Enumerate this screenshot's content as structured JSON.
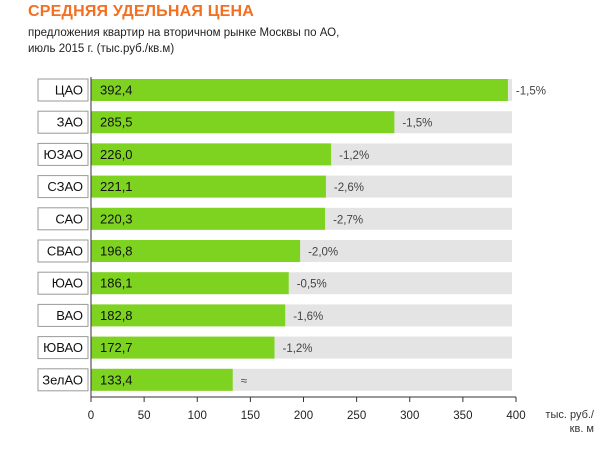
{
  "chart_data": {
    "type": "bar",
    "orientation": "horizontal",
    "title": "СРЕДНЯЯ УДЕЛЬНАЯ ЦЕНА",
    "subtitle_lines": [
      "предложения квартир на вторичном рынке Москвы по АО,",
      "июль 2015 г. (тыс.руб./кв.м)"
    ],
    "categories": [
      "ЦАО",
      "ЗАО",
      "ЮЗАО",
      "СЗАО",
      "САО",
      "СВАО",
      "ЮАО",
      "ВАО",
      "ЮВАО",
      "ЗелАО"
    ],
    "values": [
      392.4,
      285.5,
      226.0,
      221.1,
      220.3,
      196.8,
      186.1,
      182.8,
      172.7,
      133.4
    ],
    "value_labels": [
      "392,4",
      "285,5",
      "226,0",
      "221,1",
      "220,3",
      "196,8",
      "186,1",
      "182,8",
      "172,7",
      "133,4"
    ],
    "change_labels": [
      "-1,5%",
      "-1,5%",
      "-1,2%",
      "-2,6%",
      "-2,7%",
      "-2,0%",
      "-0,5%",
      "-1,6%",
      "-1,2%",
      "≈"
    ],
    "xlim": [
      0,
      400
    ],
    "xticks": [
      0,
      50,
      100,
      150,
      200,
      250,
      300,
      350,
      400
    ],
    "xlabel_lines": [
      "тыс. руб./",
      "кв. м"
    ],
    "colors": {
      "bar": "#7ed321",
      "track": "#e4e4e4",
      "title": "#f36f21",
      "axis": "#333333",
      "label_box_border": "#9a9a9a"
    }
  }
}
